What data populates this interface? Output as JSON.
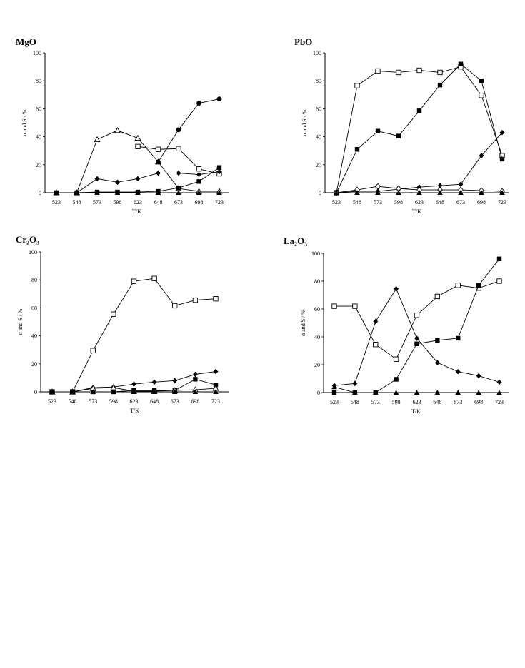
{
  "chart_data": [
    {
      "type": "line",
      "title": "MgO",
      "xlabel": "T/K",
      "ylabel": "α and S / %",
      "categories": [
        "523",
        "548",
        "573",
        "598",
        "623",
        "648",
        "673",
        "698",
        "723"
      ],
      "ylim": [
        0,
        100
      ],
      "yticks": [
        "0",
        "20",
        "40",
        "60",
        "80",
        "100"
      ],
      "series": [
        {
          "marker": "triangle-open",
          "values": [
            0,
            0,
            38,
            44.5,
            39,
            22,
            3,
            1,
            1
          ]
        },
        {
          "marker": "square-open",
          "values": [
            null,
            null,
            null,
            null,
            33,
            31,
            31.5,
            17,
            13.5
          ]
        },
        {
          "marker": "circle-filled",
          "values": [
            null,
            null,
            null,
            null,
            null,
            22,
            45,
            64,
            67
          ]
        },
        {
          "marker": "diamond-filled",
          "values": [
            0,
            0,
            10,
            7.5,
            10,
            14,
            14,
            13,
            15
          ]
        },
        {
          "marker": "square-filled",
          "values": [
            0,
            0,
            0.5,
            0.5,
            0.5,
            1,
            3.5,
            8,
            18
          ]
        },
        {
          "marker": "triangle-filled",
          "values": [
            0,
            0,
            0,
            0,
            0,
            0,
            0,
            0,
            0
          ]
        }
      ]
    },
    {
      "type": "line",
      "title": "PbO",
      "xlabel": "T/K",
      "ylabel": "α and S / %",
      "categories": [
        "523",
        "548",
        "573",
        "598",
        "623",
        "648",
        "673",
        "698",
        "723"
      ],
      "ylim": [
        0,
        100
      ],
      "yticks": [
        "0",
        "20",
        "40",
        "60",
        "80",
        "100"
      ],
      "series": [
        {
          "marker": "square-open",
          "values": [
            0,
            76.5,
            87,
            86,
            87.5,
            86,
            90,
            69.5,
            26.5
          ]
        },
        {
          "marker": "square-filled",
          "values": [
            0,
            31,
            44,
            40.5,
            58.5,
            77,
            92,
            80,
            24
          ]
        },
        {
          "marker": "diamond-filled",
          "values": [
            0,
            1,
            1,
            2.5,
            4,
            5,
            6,
            26.5,
            43
          ]
        },
        {
          "marker": "diamond-open",
          "values": [
            0,
            2,
            4.5,
            3,
            2,
            2,
            2,
            1.5,
            1
          ]
        },
        {
          "marker": "triangle-filled",
          "values": [
            0,
            0,
            0,
            0,
            0,
            0,
            0,
            0,
            0
          ]
        }
      ]
    },
    {
      "type": "line",
      "title": "Cr₂O₃",
      "xlabel": "T/K",
      "ylabel": "α and S / %",
      "categories": [
        "523",
        "548",
        "573",
        "598",
        "623",
        "648",
        "673",
        "698",
        "723"
      ],
      "ylim": [
        0,
        100
      ],
      "yticks": [
        "0",
        "20",
        "40",
        "60",
        "80",
        "100"
      ],
      "series": [
        {
          "marker": "square-open",
          "values": [
            0,
            0,
            29.5,
            55.5,
            79,
            81,
            61.5,
            65.5,
            66.5
          ]
        },
        {
          "marker": "diamond-filled",
          "values": [
            0,
            0,
            3,
            3.5,
            5.5,
            7,
            8,
            12.5,
            14.5
          ]
        },
        {
          "marker": "square-filled",
          "values": [
            0,
            0,
            0,
            0,
            1,
            1,
            1,
            9,
            5
          ]
        },
        {
          "marker": "triangle-open",
          "values": [
            0,
            0,
            2.5,
            3,
            0.5,
            0.5,
            1,
            1.5,
            2.5
          ]
        },
        {
          "marker": "triangle-filled",
          "values": [
            0,
            0,
            0,
            0,
            0,
            0,
            0,
            0,
            0
          ]
        }
      ]
    },
    {
      "type": "line",
      "title": "La₂O₃",
      "xlabel": "T/K",
      "ylabel": "α and S / %",
      "categories": [
        "523",
        "548",
        "573",
        "598",
        "623",
        "648",
        "673",
        "698",
        "723"
      ],
      "ylim": [
        0,
        100
      ],
      "yticks": [
        "0",
        "20",
        "40",
        "60",
        "80",
        "100"
      ],
      "series": [
        {
          "marker": "square-open",
          "values": [
            62,
            62,
            34.5,
            24,
            55.5,
            69,
            77,
            75,
            80
          ]
        },
        {
          "marker": "diamond-filled",
          "values": [
            5,
            6.5,
            51,
            74.5,
            39,
            21.5,
            15,
            12,
            7.5
          ]
        },
        {
          "marker": "square-filled",
          "values": [
            0,
            0,
            0,
            9.5,
            35,
            37.5,
            39,
            77,
            96
          ]
        },
        {
          "marker": "triangle-filled",
          "values": [
            4,
            0,
            0,
            0,
            0,
            0,
            0,
            0,
            0
          ]
        }
      ]
    }
  ]
}
